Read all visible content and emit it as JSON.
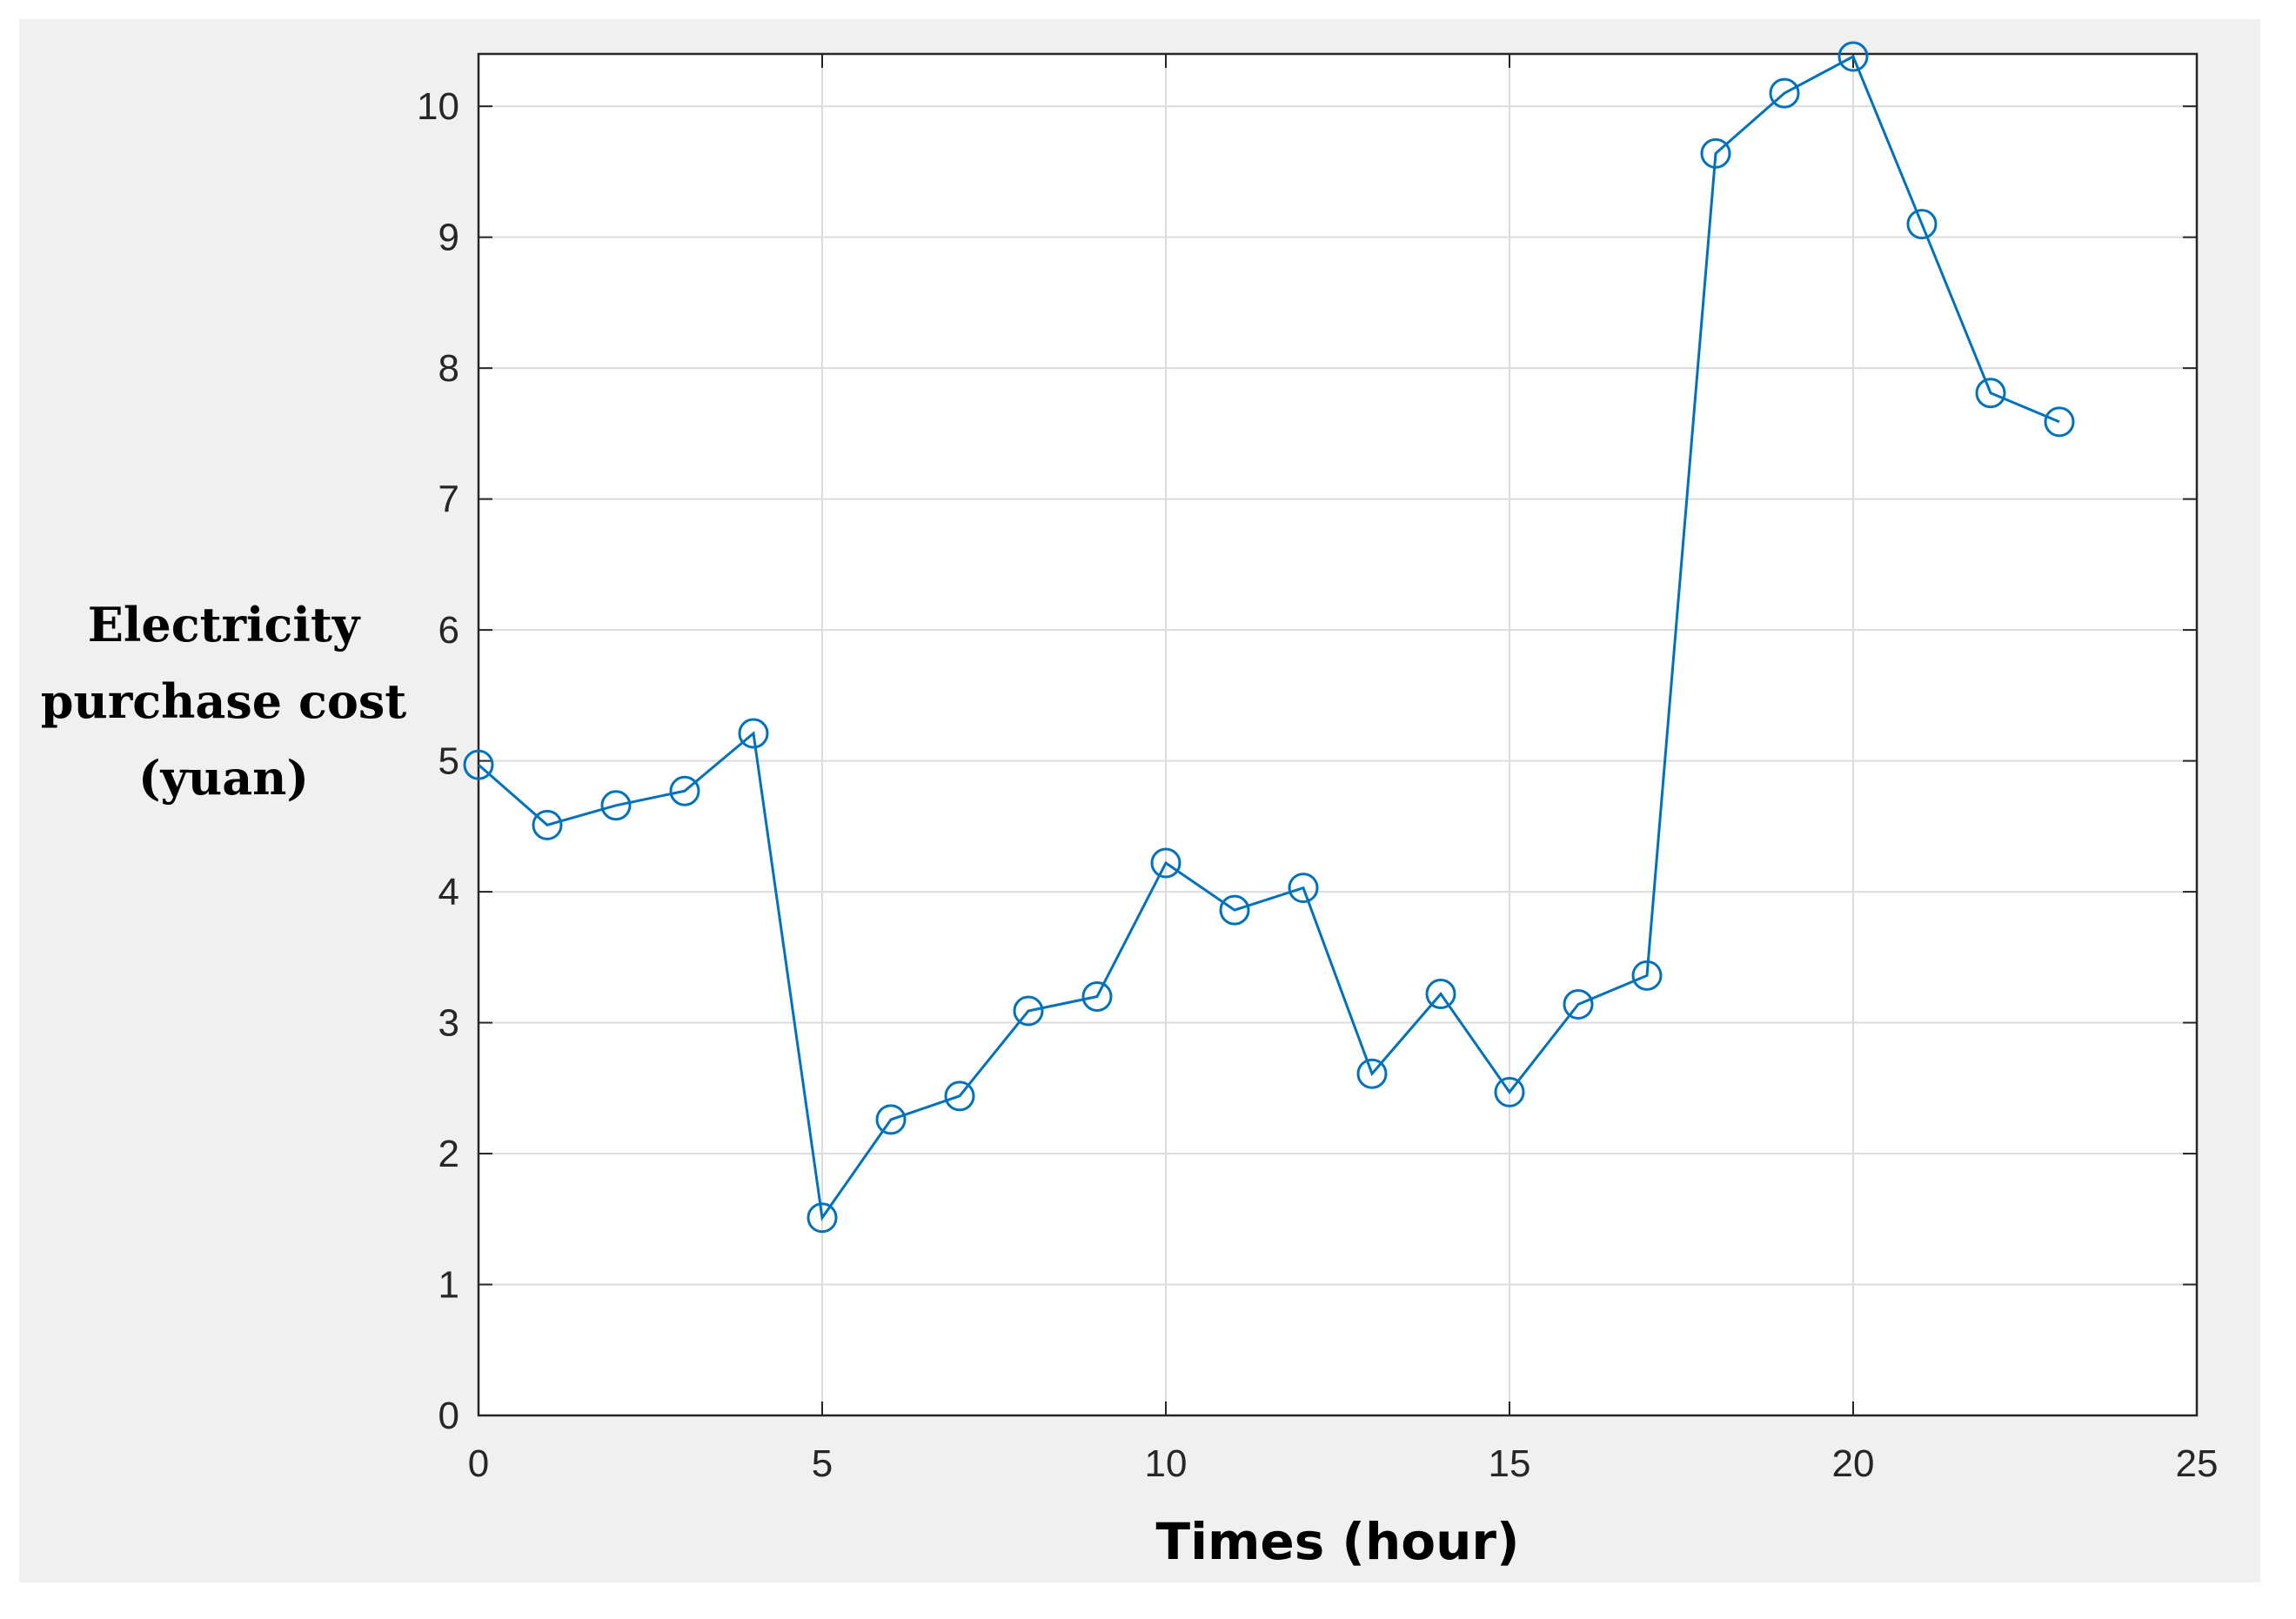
{
  "chart_data": {
    "type": "line",
    "title": "",
    "xlabel": "Times  (hour)",
    "ylabel_lines": [
      "Electricity",
      "purchase cost",
      "(yuan)"
    ],
    "xlim": [
      0,
      25
    ],
    "ylim": [
      0,
      10.4
    ],
    "xticks": [
      0,
      5,
      10,
      15,
      20,
      25
    ],
    "yticks": [
      0,
      1,
      2,
      3,
      4,
      5,
      6,
      7,
      8,
      9,
      10
    ],
    "grid": true,
    "marker": "circle-open",
    "colors": {
      "line": "#0072bd",
      "grid": "#dcdcdc",
      "axis": "#262626",
      "plot_background": "#ffffff",
      "figure_background": "#f0f0f0"
    },
    "series": [
      {
        "x": [
          0,
          1,
          2,
          3,
          4,
          5,
          6,
          7,
          8,
          9,
          10,
          11,
          12,
          13,
          14,
          15,
          16,
          17,
          18,
          19,
          20,
          21,
          22,
          23
        ],
        "values": [
          4.97,
          4.51,
          4.66,
          4.77,
          5.21,
          1.51,
          2.26,
          2.44,
          3.09,
          3.2,
          4.22,
          3.86,
          4.03,
          2.61,
          3.22,
          2.47,
          3.14,
          3.36,
          9.64,
          10.1,
          10.38,
          9.1,
          7.81,
          7.59
        ]
      }
    ]
  }
}
